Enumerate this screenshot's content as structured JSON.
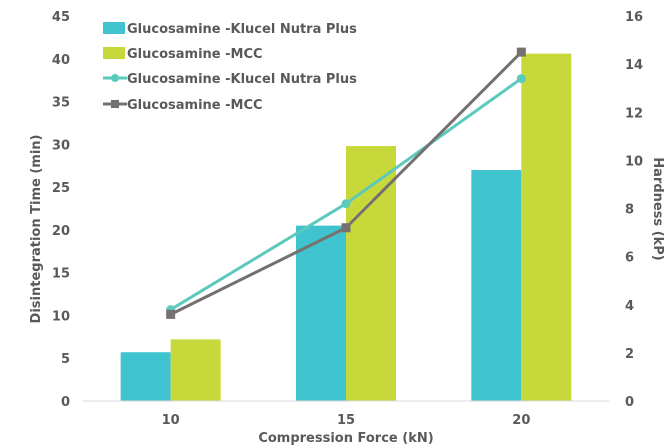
{
  "chart_data": {
    "type": "bar",
    "combo": "bar+line",
    "categories": [
      "10",
      "15",
      "20"
    ],
    "xlabel": "Compression Force (kN)",
    "ylabel": "Disintegration Time (min)",
    "y2label": "Hardness (kP)",
    "ylim": [
      0,
      45
    ],
    "yticks": [
      0,
      5,
      10,
      15,
      20,
      25,
      30,
      35,
      40,
      45
    ],
    "y2lim": [
      0,
      16
    ],
    "y2ticks": [
      0,
      2,
      4,
      6,
      8,
      10,
      12,
      14,
      16
    ],
    "grid": false,
    "legend_position": "top-left",
    "bar_series": [
      {
        "name": "Glucosamine -Klucel Nutra Plus",
        "values": [
          5.7,
          20.5,
          27.0
        ],
        "color": "#3ec3cf"
      },
      {
        "name": "Glucosamine -MCC",
        "values": [
          7.2,
          29.8,
          40.6
        ],
        "color": "#c7d93a"
      }
    ],
    "line_series": [
      {
        "name": "Glucosamine -Klucel Nutra Plus",
        "values": [
          3.8,
          8.2,
          13.4
        ],
        "color": "#5cc9bd",
        "marker": "circle",
        "axis": "right"
      },
      {
        "name": "Glucosamine -MCC",
        "values": [
          3.6,
          7.2,
          14.5
        ],
        "color": "#767171",
        "marker": "square",
        "axis": "right"
      }
    ]
  }
}
